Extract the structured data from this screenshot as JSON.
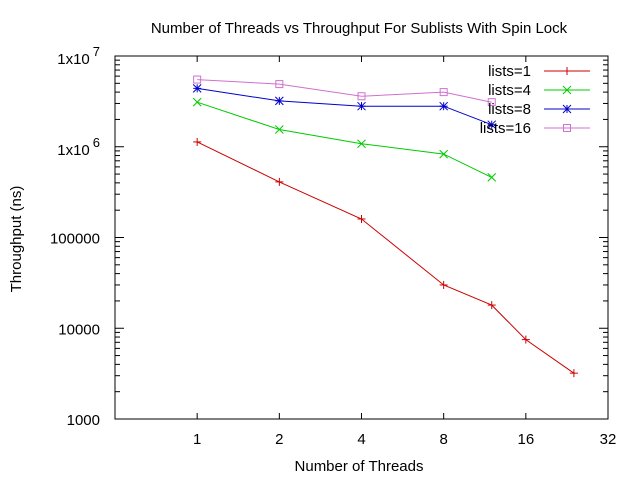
{
  "chart_data": {
    "type": "line",
    "title": "Number of Threads vs Throughput For Sublists With Spin Lock",
    "xlabel": "Number of Threads",
    "ylabel": "Throughput (ns)",
    "x_scale": "log2",
    "y_scale": "log10",
    "xlim": [
      0.5,
      32
    ],
    "ylim": [
      1000,
      10000000
    ],
    "x_ticks": [
      {
        "value": 1,
        "label": "1"
      },
      {
        "value": 2,
        "label": "2"
      },
      {
        "value": 4,
        "label": "4"
      },
      {
        "value": 8,
        "label": "8"
      },
      {
        "value": 16,
        "label": "16"
      },
      {
        "value": 32,
        "label": "32"
      }
    ],
    "y_ticks": [
      {
        "value": 1000,
        "label": "1000"
      },
      {
        "value": 10000,
        "label": "10000"
      },
      {
        "value": 100000,
        "label": "100000"
      },
      {
        "value": 1000000,
        "base": "1x10",
        "exp": "6"
      },
      {
        "value": 10000000,
        "base": "1x10",
        "exp": "7"
      }
    ],
    "grid": false,
    "legend_position": "top-right",
    "series": [
      {
        "name": "lists=1",
        "color": "#cc0000",
        "marker": "plus",
        "x": [
          1,
          2,
          4,
          8,
          12,
          16,
          24
        ],
        "y": [
          1130000,
          410000,
          160000,
          30000,
          18000,
          7500,
          3200
        ]
      },
      {
        "name": "lists=4",
        "color": "#00cc00",
        "marker": "cross",
        "x": [
          1,
          2,
          4,
          8,
          12
        ],
        "y": [
          3100000,
          1550000,
          1080000,
          830000,
          460000
        ]
      },
      {
        "name": "lists=8",
        "color": "#0000cc",
        "marker": "star",
        "x": [
          1,
          2,
          4,
          8,
          12
        ],
        "y": [
          4400000,
          3200000,
          2800000,
          2800000,
          1750000
        ]
      },
      {
        "name": "lists=16",
        "color": "#d070d0",
        "marker": "square",
        "x": [
          1,
          2,
          4,
          8,
          12
        ],
        "y": [
          5500000,
          4900000,
          3600000,
          4000000,
          3100000
        ]
      }
    ]
  }
}
